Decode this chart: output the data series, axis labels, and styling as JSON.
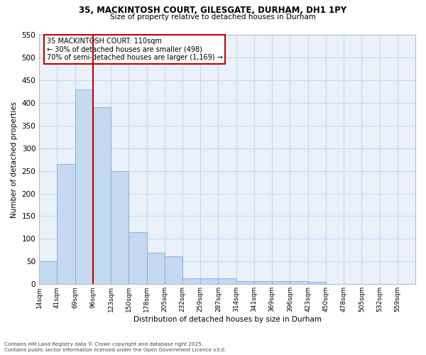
{
  "title_line1": "35, MACKINTOSH COURT, GILESGATE, DURHAM, DH1 1PY",
  "title_line2": "Size of property relative to detached houses in Durham",
  "xlabel": "Distribution of detached houses by size in Durham",
  "ylabel": "Number of detached properties",
  "bar_color": "#c5d9f0",
  "bar_edge_color": "#7aaddc",
  "grid_color": "#c5d9f0",
  "background_color": "#eaf1fb",
  "vline_color": "#c00000",
  "annotation_title": "35 MACKINTOSH COURT: 110sqm",
  "annotation_line2": "← 30% of detached houses are smaller (498)",
  "annotation_line3": "70% of semi-detached houses are larger (1,169) →",
  "annotation_box_color": "#c00000",
  "categories": [
    "14sqm",
    "41sqm",
    "69sqm",
    "96sqm",
    "123sqm",
    "150sqm",
    "178sqm",
    "205sqm",
    "232sqm",
    "259sqm",
    "287sqm",
    "314sqm",
    "341sqm",
    "369sqm",
    "396sqm",
    "423sqm",
    "450sqm",
    "478sqm",
    "505sqm",
    "532sqm",
    "559sqm"
  ],
  "values": [
    50,
    265,
    430,
    390,
    250,
    115,
    70,
    62,
    13,
    13,
    13,
    7,
    6,
    6,
    6,
    5,
    0,
    0,
    0,
    0,
    0
  ],
  "ylim": [
    0,
    550
  ],
  "yticks": [
    0,
    50,
    100,
    150,
    200,
    250,
    300,
    350,
    400,
    450,
    500,
    550
  ],
  "footnote1": "Contains HM Land Registry data © Crown copyright and database right 2025.",
  "footnote2": "Contains public sector information licensed under the Open Government Licence v3.0."
}
